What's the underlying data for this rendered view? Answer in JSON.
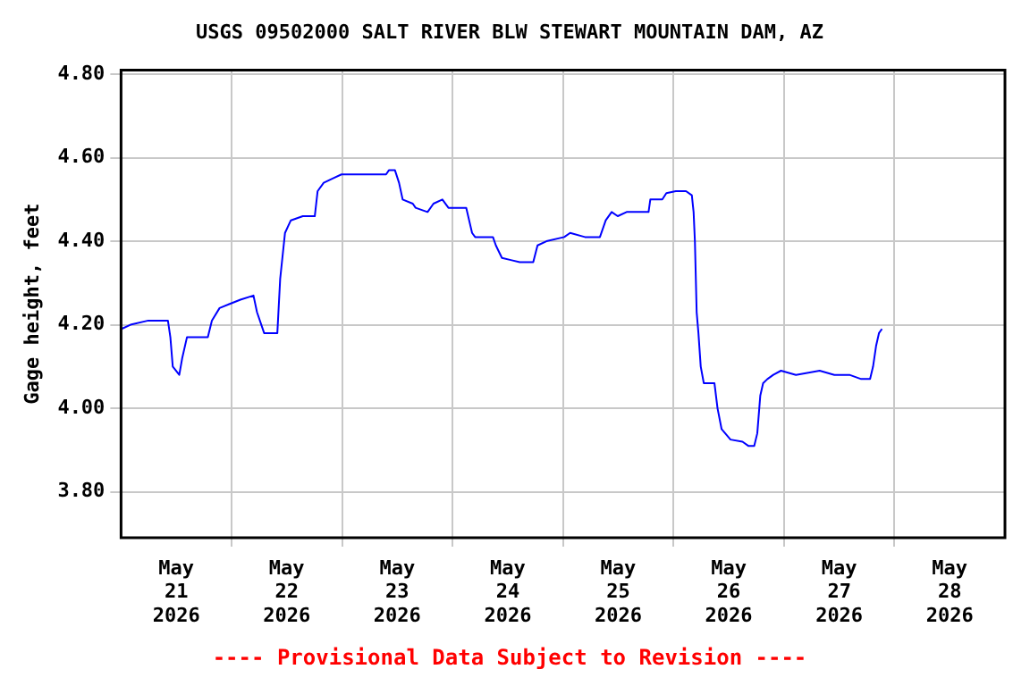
{
  "chart_data": {
    "type": "line",
    "title": "USGS 09502000 SALT RIVER BLW STEWART MOUNTAIN DAM, AZ",
    "ylabel": "Gage height, feet",
    "annotations": [
      "---- Provisional Data Subject to Revision ----"
    ],
    "x": [
      "2026-05-21T00:06",
      "2026-05-21T02:03",
      "2026-05-21T05:55",
      "2026-05-21T10:11",
      "2026-05-21T10:43",
      "2026-05-21T11:14",
      "2026-05-21T12:39",
      "2026-05-21T13:17",
      "2026-05-21T14:19",
      "2026-05-21T16:15",
      "2026-05-21T18:51",
      "2026-05-21T19:44",
      "2026-05-21T21:24",
      "2026-05-21T23:37",
      "2026-05-22T01:56",
      "2026-05-22T04:46",
      "2026-05-22T05:32",
      "2026-05-22T07:05",
      "2026-05-22T09:57",
      "2026-05-22T10:34",
      "2026-05-22T11:37",
      "2026-05-22T12:53",
      "2026-05-22T15:29",
      "2026-05-22T18:05",
      "2026-05-22T18:42",
      "2026-05-22T20:01",
      "2026-05-22T21:57",
      "2026-05-22T23:53",
      "2026-05-23T09:34",
      "2026-05-23T10:11",
      "2026-05-23T11:30",
      "2026-05-23T12:23",
      "2026-05-23T13:10",
      "2026-05-23T15:22",
      "2026-05-23T15:59",
      "2026-05-23T18:35",
      "2026-05-23T19:52",
      "2026-05-23T21:48",
      "2026-05-23T23:07",
      "2026-05-24T02:59",
      "2026-05-24T04:15",
      "2026-05-24T04:55",
      "2026-05-24T08:47",
      "2026-05-24T09:25",
      "2026-05-24T10:44",
      "2026-05-24T12:40",
      "2026-05-24T14:36",
      "2026-05-24T17:32",
      "2026-05-24T18:28",
      "2026-05-24T20:24",
      "2026-05-25T00:16",
      "2026-05-25T01:33",
      "2026-05-25T04:46",
      "2026-05-25T08:01",
      "2026-05-25T09:17",
      "2026-05-25T10:34",
      "2026-05-25T11:53",
      "2026-05-25T13:49",
      "2026-05-25T16:23",
      "2026-05-25T18:35",
      "2026-05-25T18:58",
      "2026-05-25T21:34",
      "2026-05-25T22:27",
      "2026-05-26T00:30",
      "2026-05-26T02:43",
      "2026-05-26T03:59",
      "2026-05-26T04:22",
      "2026-05-26T04:39",
      "2026-05-26T05:02",
      "2026-05-26T05:25",
      "2026-05-26T05:55",
      "2026-05-26T06:35",
      "2026-05-26T08:54",
      "2026-05-26T09:34",
      "2026-05-26T10:27",
      "2026-05-26T12:23",
      "2026-05-26T14:59",
      "2026-05-26T16:15",
      "2026-05-26T17:32",
      "2026-05-26T18:12",
      "2026-05-26T18:51",
      "2026-05-26T19:28",
      "2026-05-26T20:24",
      "2026-05-26T21:41",
      "2026-05-26T23:21",
      "2026-05-27T02:36",
      "2026-05-27T07:45",
      "2026-05-27T10:57",
      "2026-05-27T14:13",
      "2026-05-27T16:46",
      "2026-05-27T18:42",
      "2026-05-27T19:21",
      "2026-05-27T20:01",
      "2026-05-27T20:38",
      "2026-05-27T21:17"
    ],
    "series": [
      {
        "color": "#0000ff",
        "values": [
          4.19,
          4.2,
          4.21,
          4.21,
          4.17,
          4.1,
          4.08,
          4.12,
          4.17,
          4.17,
          4.17,
          4.21,
          4.24,
          4.25,
          4.26,
          4.27,
          4.23,
          4.18,
          4.18,
          4.31,
          4.42,
          4.45,
          4.46,
          4.46,
          4.52,
          4.54,
          4.55,
          4.56,
          4.56,
          4.57,
          4.57,
          4.54,
          4.5,
          4.49,
          4.48,
          4.47,
          4.49,
          4.5,
          4.48,
          4.48,
          4.42,
          4.41,
          4.41,
          4.39,
          4.36,
          4.355,
          4.35,
          4.35,
          4.39,
          4.4,
          4.41,
          4.42,
          4.41,
          4.41,
          4.45,
          4.47,
          4.46,
          4.47,
          4.47,
          4.47,
          4.5,
          4.5,
          4.515,
          4.52,
          4.52,
          4.51,
          4.47,
          4.4,
          4.23,
          4.18,
          4.1,
          4.06,
          4.06,
          4.0,
          3.95,
          3.925,
          3.92,
          3.91,
          3.91,
          3.94,
          4.03,
          4.06,
          4.07,
          4.08,
          4.09,
          4.08,
          4.09,
          4.08,
          4.08,
          4.07,
          4.07,
          4.1,
          4.15,
          4.18,
          4.19
        ]
      }
    ],
    "xlim": [
      "2026-05-21T00:00",
      "2026-05-29T00:00"
    ],
    "xticks": [
      {
        "value": "2026-05-21T12:00",
        "label": "May\n21\n2026"
      },
      {
        "value": "2026-05-22T00:00",
        "label": null
      },
      {
        "value": "2026-05-22T12:00",
        "label": "May\n22\n2026"
      },
      {
        "value": "2026-05-23T00:00",
        "label": null
      },
      {
        "value": "2026-05-23T12:00",
        "label": "May\n23\n2026"
      },
      {
        "value": "2026-05-24T00:00",
        "label": null
      },
      {
        "value": "2026-05-24T12:00",
        "label": "May\n24\n2026"
      },
      {
        "value": "2026-05-25T00:00",
        "label": null
      },
      {
        "value": "2026-05-25T12:00",
        "label": "May\n25\n2026"
      },
      {
        "value": "2026-05-26T00:00",
        "label": null
      },
      {
        "value": "2026-05-26T12:00",
        "label": "May\n26\n2026"
      },
      {
        "value": "2026-05-27T00:00",
        "label": null
      },
      {
        "value": "2026-05-27T12:00",
        "label": "May\n27\n2026"
      },
      {
        "value": "2026-05-28T00:00",
        "label": null
      },
      {
        "value": "2026-05-28T12:00",
        "label": "May\n28\n2026"
      }
    ],
    "ylim": [
      3.69,
      4.81
    ],
    "yticks": [
      {
        "value": 3.8,
        "label": "3.80"
      },
      {
        "value": 4.0,
        "label": "4.00"
      },
      {
        "value": 4.2,
        "label": "4.20"
      },
      {
        "value": 4.4,
        "label": "4.40"
      },
      {
        "value": 4.6,
        "label": "4.60"
      },
      {
        "value": 4.8,
        "label": "4.80"
      }
    ],
    "grid": true,
    "legend": false,
    "marker": "none",
    "line_style": "solid"
  }
}
